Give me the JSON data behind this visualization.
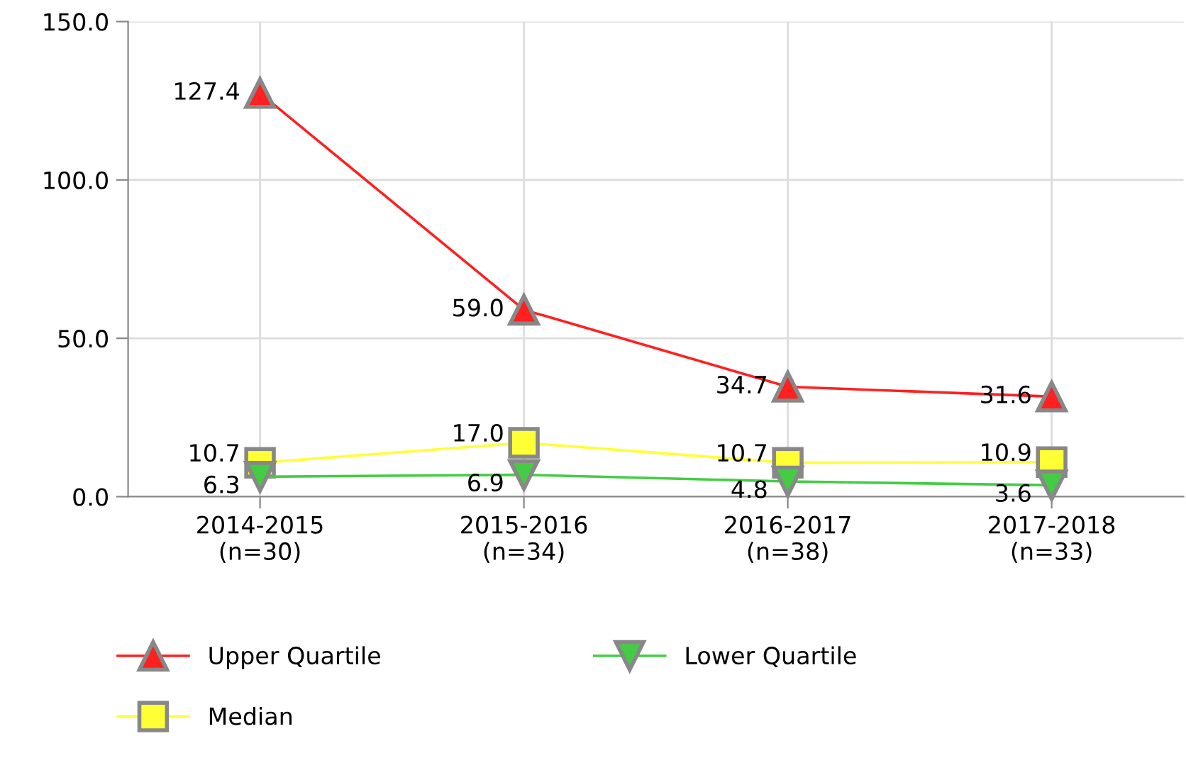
{
  "chart_data": {
    "type": "line",
    "categories": [
      "2014-2015\n(n=30)",
      "2015-2016\n(n=34)",
      "2016-2017\n(n=38)",
      "2017-2018\n(n=33)"
    ],
    "series": [
      {
        "name": "Upper Quartile",
        "color": "#ff2020",
        "marker": "triangle",
        "values": [
          127.4,
          59.0,
          34.7,
          31.6
        ],
        "value_labels": [
          "127.4",
          "59.0",
          "34.7",
          "31.6"
        ]
      },
      {
        "name": "Median",
        "color": "#ffff33",
        "marker": "square",
        "values": [
          10.7,
          17.0,
          10.7,
          10.9
        ],
        "value_labels": [
          "10.7",
          "17.0",
          "10.7",
          "10.9"
        ]
      },
      {
        "name": "Lower Quartile",
        "color": "#44cc44",
        "marker": "triangle_down",
        "values": [
          6.3,
          6.9,
          4.8,
          3.6
        ],
        "value_labels": [
          "6.3",
          "6.9",
          "4.8",
          "3.6"
        ]
      }
    ],
    "ylim": [
      0,
      150
    ],
    "yticks": [
      {
        "value": 0,
        "label": "0.0"
      },
      {
        "value": 50,
        "label": "50.0"
      },
      {
        "value": 100,
        "label": "100.0"
      },
      {
        "value": 150,
        "label": "150.0"
      }
    ],
    "grid": true,
    "legend": "bottom",
    "line_style": "solid"
  }
}
